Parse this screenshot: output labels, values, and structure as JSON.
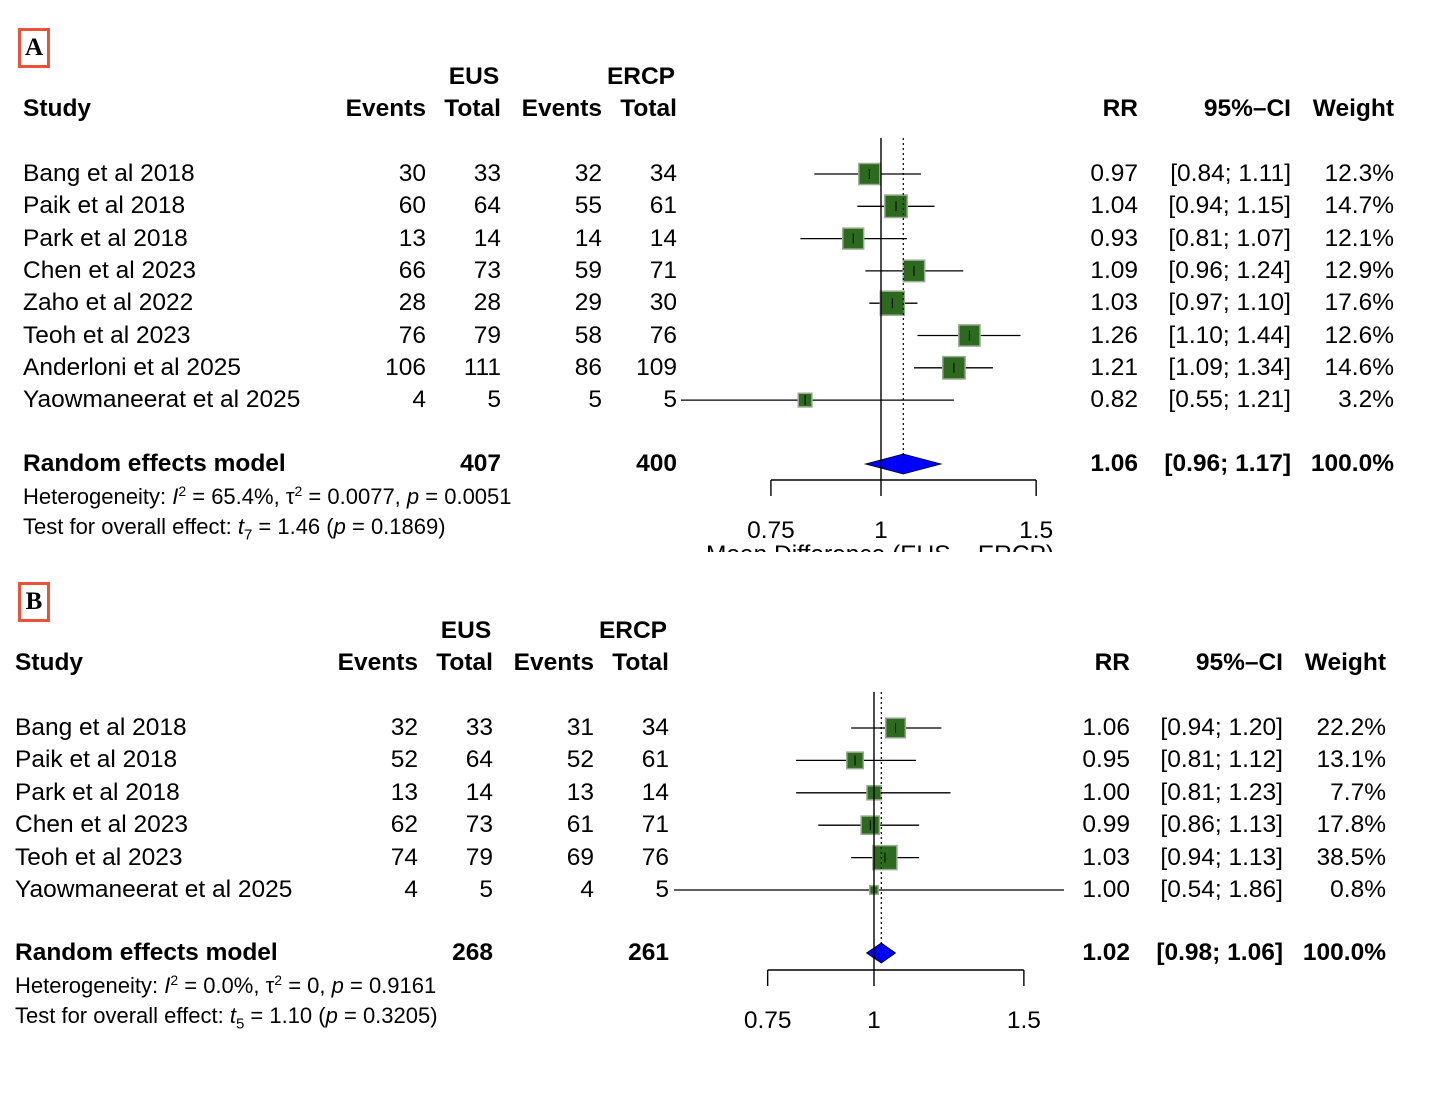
{
  "chart_data": [
    {
      "type": "forest",
      "panel_label": "A",
      "group_headers": [
        "EUS",
        "ERCP"
      ],
      "column_headers": {
        "study": "Study",
        "events": "Events",
        "total": "Total",
        "rr": "RR",
        "ci": "95%–CI",
        "weight": "Weight"
      },
      "studies": [
        {
          "name": "Bang et al 2018",
          "eus_events": "30",
          "eus_total": "33",
          "ercp_events": "32",
          "ercp_total": "34",
          "rr_text": "0.97",
          "ci_text": "[0.84; 1.11]",
          "weight_text": "12.3%",
          "rr": 0.97,
          "lo": 0.84,
          "hi": 1.11,
          "weight": 12.3
        },
        {
          "name": "Paik et al 2018",
          "eus_events": "60",
          "eus_total": "64",
          "ercp_events": "55",
          "ercp_total": "61",
          "rr_text": "1.04",
          "ci_text": "[0.94; 1.15]",
          "weight_text": "14.7%",
          "rr": 1.04,
          "lo": 0.94,
          "hi": 1.15,
          "weight": 14.7
        },
        {
          "name": "Park et al 2018",
          "eus_events": "13",
          "eus_total": "14",
          "ercp_events": "14",
          "ercp_total": "14",
          "rr_text": "0.93",
          "ci_text": "[0.81; 1.07]",
          "weight_text": "12.1%",
          "rr": 0.93,
          "lo": 0.81,
          "hi": 1.07,
          "weight": 12.1
        },
        {
          "name": "Chen et al 2023",
          "eus_events": "66",
          "eus_total": "73",
          "ercp_events": "59",
          "ercp_total": "71",
          "rr_text": "1.09",
          "ci_text": "[0.96; 1.24]",
          "weight_text": "12.9%",
          "rr": 1.09,
          "lo": 0.96,
          "hi": 1.24,
          "weight": 12.9
        },
        {
          "name": "Zaho et al 2022",
          "eus_events": "28",
          "eus_total": "28",
          "ercp_events": "29",
          "ercp_total": "30",
          "rr_text": "1.03",
          "ci_text": "[0.97; 1.10]",
          "weight_text": "17.6%",
          "rr": 1.03,
          "lo": 0.97,
          "hi": 1.1,
          "weight": 17.6
        },
        {
          "name": "Teoh et al 2023",
          "eus_events": "76",
          "eus_total": "79",
          "ercp_events": "58",
          "ercp_total": "76",
          "rr_text": "1.26",
          "ci_text": "[1.10; 1.44]",
          "weight_text": "12.6%",
          "rr": 1.26,
          "lo": 1.1,
          "hi": 1.44,
          "weight": 12.6
        },
        {
          "name": "Anderloni et al 2025",
          "eus_events": "106",
          "eus_total": "111",
          "ercp_events": "86",
          "ercp_total": "109",
          "rr_text": "1.21",
          "ci_text": "[1.09; 1.34]",
          "weight_text": "14.6%",
          "rr": 1.21,
          "lo": 1.09,
          "hi": 1.34,
          "weight": 14.6
        },
        {
          "name": "Yaowmaneerat et al 2025",
          "eus_events": "4",
          "eus_total": "5",
          "ercp_events": "5",
          "ercp_total": "5",
          "rr_text": "0.82",
          "ci_text": "[0.55; 1.21]",
          "weight_text": "3.2%",
          "rr": 0.82,
          "lo": 0.55,
          "hi": 1.21,
          "weight": 3.2
        }
      ],
      "pooled": {
        "label": "Random effects model",
        "eus_total": "407",
        "ercp_total": "400",
        "rr_text": "1.06",
        "ci_text": "[0.96; 1.17]",
        "weight_text": "100.0%",
        "rr": 1.06,
        "lo": 0.96,
        "hi": 1.17
      },
      "heterogeneity": {
        "prefix": "Heterogeneity: ",
        "i2": " = 65.4%, ",
        "tau2": " = 0.0077, ",
        "p": " = 0.0051"
      },
      "overall_effect": {
        "prefix": "Test for overall effect: ",
        "df": "7",
        "t": " = 1.46 (",
        "p": " = 0.1869)"
      },
      "x_ticks": [
        "0.75",
        "1",
        "1.5"
      ],
      "x_scale": "log",
      "xlim": [
        0.75,
        1.5
      ],
      "null_line": 1,
      "xlabel": "Mean Difference (EUS – ERCP)"
    },
    {
      "type": "forest",
      "panel_label": "B",
      "group_headers": [
        "EUS",
        "ERCP"
      ],
      "column_headers": {
        "study": "Study",
        "events": "Events",
        "total": "Total",
        "rr": "RR",
        "ci": "95%–CI",
        "weight": "Weight"
      },
      "studies": [
        {
          "name": "Bang et al 2018",
          "eus_events": "32",
          "eus_total": "33",
          "ercp_events": "31",
          "ercp_total": "34",
          "rr_text": "1.06",
          "ci_text": "[0.94; 1.20]",
          "weight_text": "22.2%",
          "rr": 1.06,
          "lo": 0.94,
          "hi": 1.2,
          "weight": 22.2
        },
        {
          "name": "Paik et al 2018",
          "eus_events": "52",
          "eus_total": "64",
          "ercp_events": "52",
          "ercp_total": "61",
          "rr_text": "0.95",
          "ci_text": "[0.81; 1.12]",
          "weight_text": "13.1%",
          "rr": 0.95,
          "lo": 0.81,
          "hi": 1.12,
          "weight": 13.1
        },
        {
          "name": "Park et al 2018",
          "eus_events": "13",
          "eus_total": "14",
          "ercp_events": "13",
          "ercp_total": "14",
          "rr_text": "1.00",
          "ci_text": "[0.81; 1.23]",
          "weight_text": "7.7%",
          "rr": 1.0,
          "lo": 0.81,
          "hi": 1.23,
          "weight": 7.7
        },
        {
          "name": "Chen et al 2023",
          "eus_events": "62",
          "eus_total": "73",
          "ercp_events": "61",
          "ercp_total": "71",
          "rr_text": "0.99",
          "ci_text": "[0.86; 1.13]",
          "weight_text": "17.8%",
          "rr": 0.99,
          "lo": 0.86,
          "hi": 1.13,
          "weight": 17.8
        },
        {
          "name": "Teoh et al 2023",
          "eus_events": "74",
          "eus_total": "79",
          "ercp_events": "69",
          "ercp_total": "76",
          "rr_text": "1.03",
          "ci_text": "[0.94; 1.13]",
          "weight_text": "38.5%",
          "rr": 1.03,
          "lo": 0.94,
          "hi": 1.13,
          "weight": 38.5
        },
        {
          "name": "Yaowmaneerat et al 2025",
          "eus_events": "4",
          "eus_total": "5",
          "ercp_events": "4",
          "ercp_total": "5",
          "rr_text": "1.00",
          "ci_text": "[0.54; 1.86]",
          "weight_text": "0.8%",
          "rr": 1.0,
          "lo": 0.54,
          "hi": 1.86,
          "weight": 0.8
        }
      ],
      "pooled": {
        "label": "Random effects model",
        "eus_total": "268",
        "ercp_total": "261",
        "rr_text": "1.02",
        "ci_text": "[0.98; 1.06]",
        "weight_text": "100.0%",
        "rr": 1.02,
        "lo": 0.98,
        "hi": 1.06
      },
      "heterogeneity": {
        "prefix": "Heterogeneity: ",
        "i2": " = 0.0%, ",
        "tau2": " = 0, ",
        "p": " = 0.9161"
      },
      "overall_effect": {
        "prefix": "Test for overall effect: ",
        "df": "5",
        "t": " = 1.10 (",
        "p": " = 0.3205)"
      },
      "x_ticks": [
        "0.75",
        "1",
        "1.5"
      ],
      "x_scale": "log",
      "xlim": [
        0.75,
        1.5
      ],
      "null_line": 1,
      "xlabel": ""
    }
  ],
  "colors": {
    "square_fill": "#2d6a1f",
    "square_border": "#9aaa94",
    "diamond_fill": "#0000ff",
    "panel_label_border": "#e8533a"
  }
}
